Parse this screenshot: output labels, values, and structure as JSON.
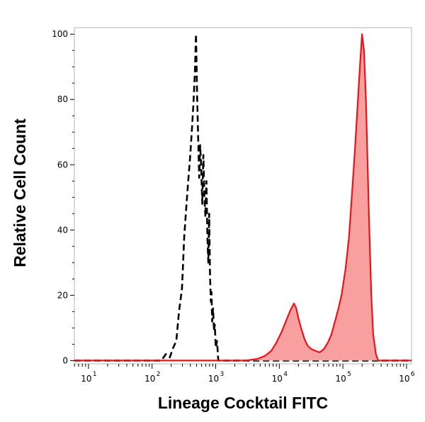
{
  "chart_data": {
    "type": "area",
    "title": "",
    "xlabel": "Lineage Cocktail FITC",
    "ylabel": "Relative Cell Count",
    "xscale": "log",
    "xlim": [
      6,
      1200000
    ],
    "ylim": [
      -1,
      102
    ],
    "grid": false,
    "legend": "none",
    "x_ticks": [
      {
        "base": "10",
        "exp": "1",
        "value": 10
      },
      {
        "base": "10",
        "exp": "2",
        "value": 100
      },
      {
        "base": "10",
        "exp": "3",
        "value": 1000
      },
      {
        "base": "10",
        "exp": "4",
        "value": 10000
      },
      {
        "base": "10",
        "exp": "5",
        "value": 100000
      },
      {
        "base": "10",
        "exp": "6",
        "value": 1000000
      }
    ],
    "y_ticks": [
      {
        "label": "0",
        "value": 0
      },
      {
        "label": "20",
        "value": 20
      },
      {
        "label": "40",
        "value": 40
      },
      {
        "label": "60",
        "value": 60
      },
      {
        "label": "80",
        "value": 80
      },
      {
        "label": "100",
        "value": 100
      }
    ],
    "series": [
      {
        "style": "dashed-line",
        "color": "#000000",
        "x": [
          6,
          140,
          165,
          190,
          215,
          240,
          265,
          295,
          320,
          345,
          370,
          395,
          420,
          445,
          470,
          490,
          510,
          530,
          550,
          570,
          590,
          615,
          640,
          665,
          690,
          715,
          740,
          765,
          790,
          815,
          840,
          860,
          880,
          910,
          940,
          970,
          1000,
          1050,
          1100,
          1200000
        ],
        "y": [
          0,
          0,
          2,
          1,
          4,
          6,
          15,
          22,
          38,
          47,
          55,
          62,
          70,
          78,
          88,
          100,
          82,
          68,
          56,
          66,
          60,
          48,
          63,
          50,
          44,
          55,
          38,
          30,
          45,
          26,
          18,
          21,
          12,
          16,
          9,
          11,
          4,
          6,
          0,
          0
        ]
      },
      {
        "style": "filled",
        "color": "#e8141b",
        "fill": "#f8a0a0",
        "x": [
          6,
          3000,
          4500,
          6000,
          7500,
          9000,
          11000,
          13000,
          15000,
          17000,
          18500,
          20000,
          22000,
          25000,
          28000,
          32000,
          37000,
          43000,
          50000,
          58000,
          66000,
          75000,
          85000,
          95000,
          110000,
          125000,
          140000,
          155000,
          170000,
          185000,
          200000,
          215000,
          230000,
          245000,
          260000,
          280000,
          300000,
          330000,
          360000,
          400000,
          1200000
        ],
        "y": [
          0,
          0,
          0.5,
          1.5,
          3,
          5.5,
          9,
          12.5,
          15.5,
          17.5,
          16,
          13,
          10,
          6.5,
          4.5,
          3.5,
          3,
          2.5,
          3.5,
          5.5,
          8,
          12,
          16,
          20,
          28,
          38,
          52,
          65,
          78,
          90,
          100,
          95,
          80,
          60,
          40,
          20,
          8,
          2,
          0,
          0,
          0
        ]
      }
    ]
  }
}
